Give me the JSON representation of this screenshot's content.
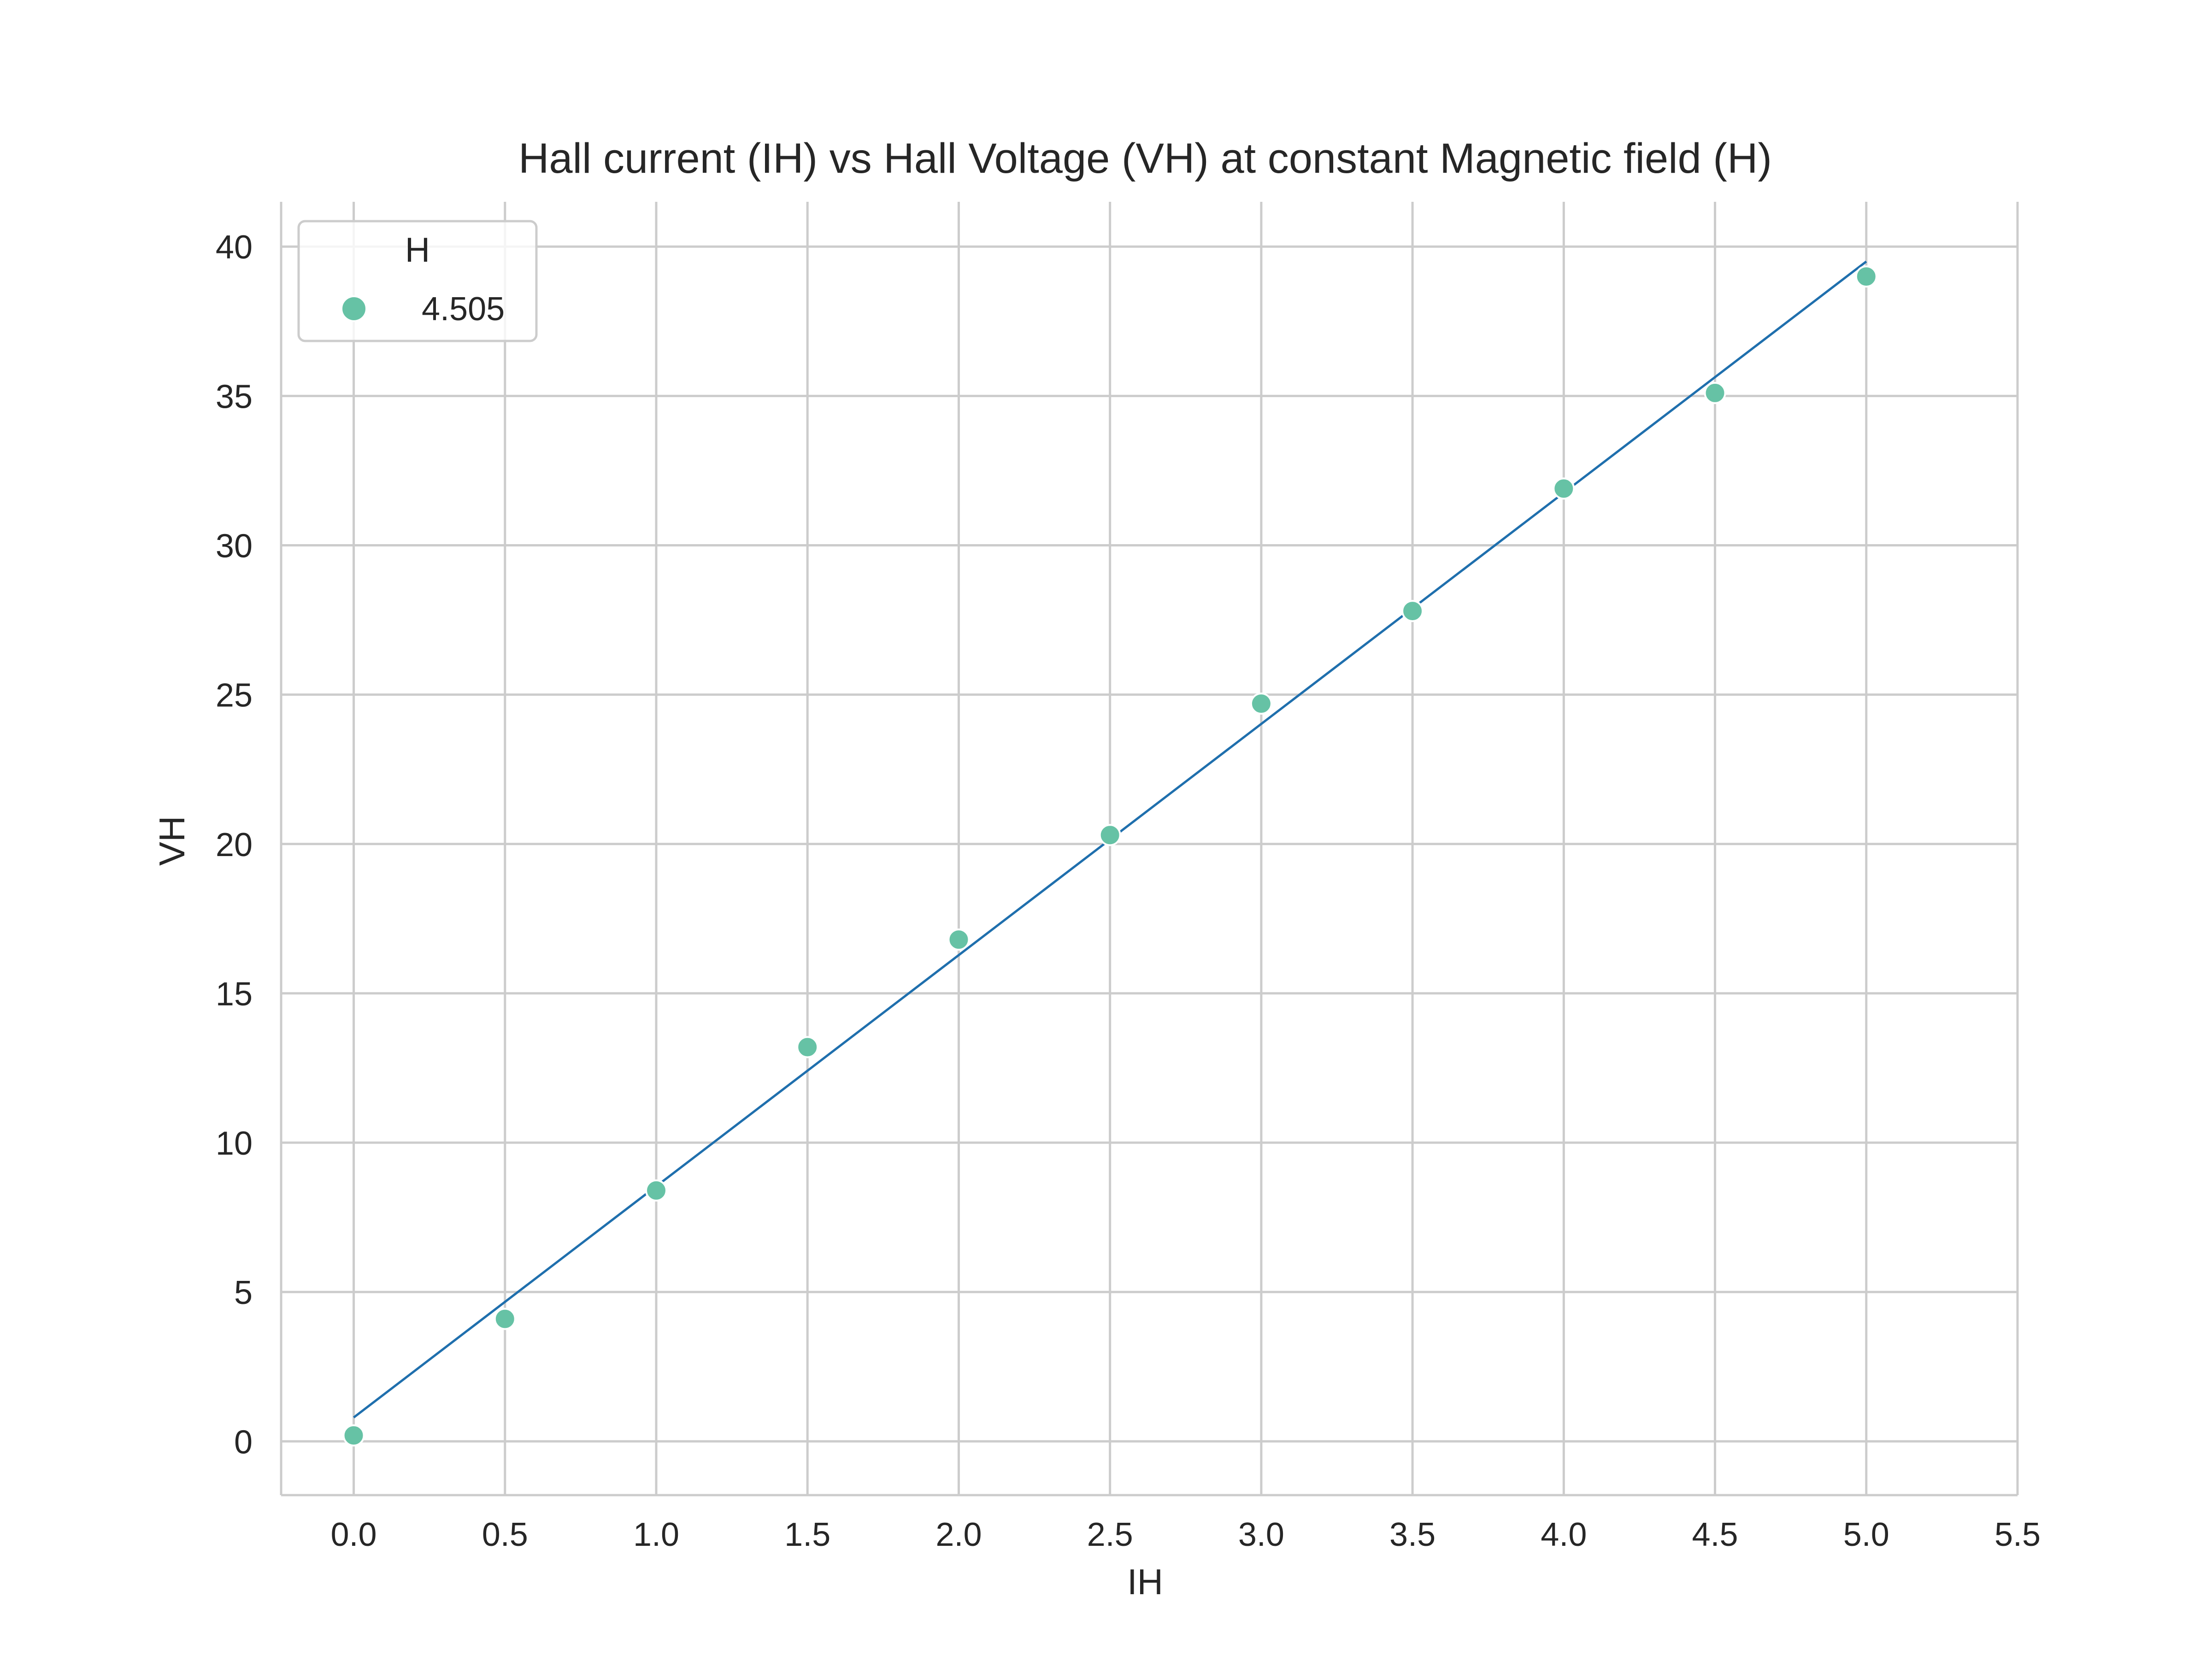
{
  "chart_data": {
    "type": "scatter",
    "title": "Hall current (IH) vs Hall Voltage (VH) at constant Magnetic field (H)",
    "xlabel": "IH",
    "ylabel": "VH",
    "xlim": [
      -0.24,
      5.5
    ],
    "ylim": [
      -1.8,
      41.5
    ],
    "xticks": [
      "0.0",
      "0.5",
      "1.0",
      "1.5",
      "2.0",
      "2.5",
      "3.0",
      "3.5",
      "4.0",
      "4.5",
      "5.0",
      "5.5"
    ],
    "yticks": [
      "0",
      "5",
      "10",
      "15",
      "20",
      "25",
      "30",
      "35",
      "40"
    ],
    "grid": true,
    "legend": {
      "title": "H",
      "placement": "top-left",
      "entries": [
        "4.505"
      ]
    },
    "series": [
      {
        "name": "4.505",
        "kind": "scatter",
        "color": "#66c2a5",
        "x": [
          0.0,
          0.5,
          1.0,
          1.5,
          2.0,
          2.5,
          3.0,
          3.5,
          4.0,
          4.5,
          5.0
        ],
        "y": [
          0.2,
          4.1,
          8.4,
          13.2,
          16.8,
          20.3,
          24.7,
          27.8,
          31.9,
          35.1,
          39.0
        ]
      },
      {
        "kind": "line",
        "color": "#1f6fad",
        "x": [
          0.0,
          5.0
        ],
        "y": [
          0.8,
          39.5
        ]
      }
    ]
  }
}
